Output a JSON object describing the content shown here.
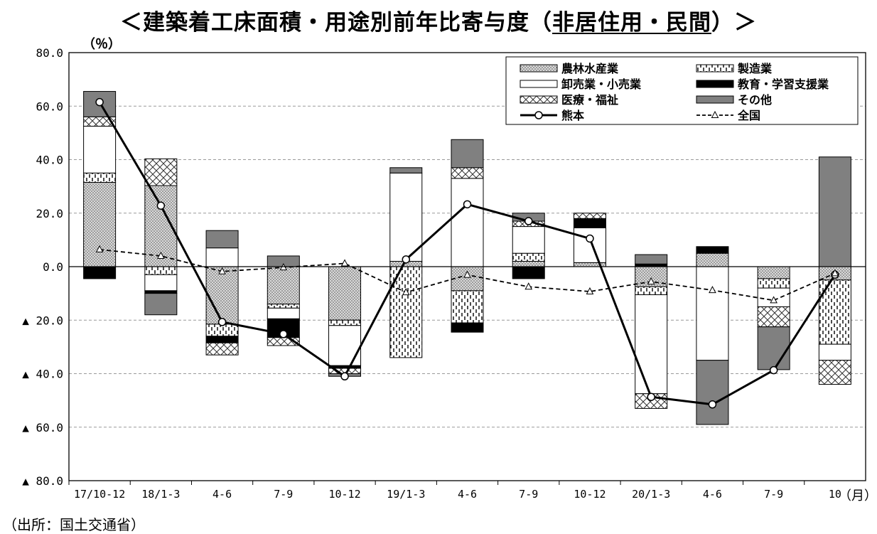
{
  "title": {
    "prefix": "＜建築着工床面積・用途別前年比寄与度（",
    "underlined": "非居住用・民間",
    "suffix": "）＞"
  },
  "unit_top": "（％）",
  "unit_bottom": "（月）",
  "source": "（出所：国土交通省）",
  "colors": {
    "agri": "#d9d9d9",
    "manufacturing": "#ffffff",
    "wholesale": "#ffffff",
    "education": "#000000",
    "medical": "#ffffff",
    "other": "#808080",
    "kumamoto_line": "#000000",
    "national_line": "#000000",
    "grid": "#999999"
  },
  "chart_data": {
    "type": "bar",
    "stacked": true,
    "ylim": [
      -80,
      80
    ],
    "yticks": [
      80,
      60,
      40,
      20,
      0,
      -20,
      -40,
      -60,
      -80
    ],
    "ytick_labels": [
      "80.0",
      "60.0",
      "40.0",
      "20.0",
      "0.0",
      "▲ 20.0",
      "▲ 40.0",
      "▲ 60.0",
      "▲ 80.0"
    ],
    "grid": "horizontal dashed",
    "legend_position": "top-right",
    "categories": [
      "17/10-12",
      "18/1-3",
      "4-6",
      "7-9",
      "10-12",
      "19/1-3",
      "4-6",
      "7-9",
      "10-12",
      "20/1-3",
      "4-6",
      "7-9",
      "10"
    ],
    "series": [
      {
        "key": "agri",
        "name": "農林水産業",
        "pattern": "dots",
        "values": [
          31.5,
          30.3,
          -21.5,
          -14.0,
          -20.0,
          2.0,
          -9.0,
          2.0,
          1.5,
          -7.5,
          5.0,
          -4.5,
          -5.0
        ]
      },
      {
        "key": "manufacturing",
        "name": "製造業",
        "pattern": "vdash",
        "values": [
          3.5,
          -3.0,
          -4.5,
          -1.5,
          -2.0,
          -34.0,
          -12.0,
          3.0,
          0.0,
          -3.0,
          0.0,
          -3.5,
          -24.0
        ]
      },
      {
        "key": "wholesale",
        "name": "卸売業・小売業",
        "pattern": "plain",
        "values": [
          17.5,
          -6.0,
          7.0,
          -4.0,
          -15.0,
          33.0,
          33.0,
          10.0,
          13.0,
          -37.0,
          -35.0,
          -7.0,
          -6.0
        ]
      },
      {
        "key": "education",
        "name": "教育・学習支援業",
        "pattern": "solid-black",
        "values": [
          -4.5,
          -1.0,
          -2.5,
          -7.0,
          -1.0,
          0.0,
          -3.5,
          -4.5,
          3.5,
          1.0,
          2.5,
          0.0,
          0.0
        ]
      },
      {
        "key": "medical",
        "name": "医療・福祉",
        "pattern": "crosshatch",
        "values": [
          3.5,
          10.0,
          -4.5,
          -3.0,
          -2.0,
          0.0,
          4.0,
          2.0,
          2.0,
          -5.5,
          0.0,
          -7.5,
          -9.0
        ]
      },
      {
        "key": "other",
        "name": "その他",
        "pattern": "solid-gray",
        "values": [
          9.5,
          -8.0,
          6.5,
          4.0,
          -1.0,
          2.0,
          10.5,
          3.0,
          0.0,
          3.5,
          -24.0,
          -16.0,
          41.0
        ]
      }
    ],
    "lines": [
      {
        "key": "kumamoto",
        "name": "熊本",
        "style": "solid-circle",
        "values": [
          61.5,
          22.8,
          -20.7,
          -25.2,
          -41.0,
          2.7,
          23.3,
          17.0,
          10.5,
          -48.7,
          -51.5,
          -38.7,
          -3.0
        ]
      },
      {
        "key": "national",
        "name": "全国",
        "style": "dashed-triangle",
        "values": [
          6.4,
          4.0,
          -1.8,
          -0.3,
          1.2,
          -9.6,
          -3.1,
          -7.5,
          -9.3,
          -5.6,
          -8.8,
          -12.6,
          -2.5
        ]
      }
    ]
  }
}
